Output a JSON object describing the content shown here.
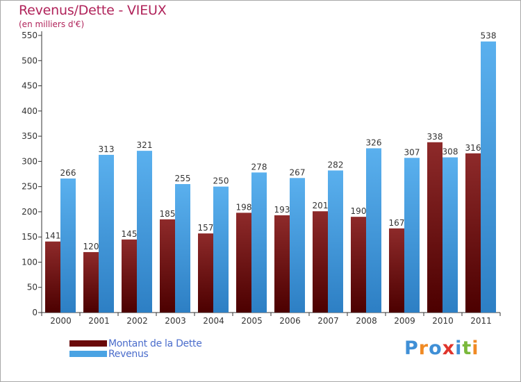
{
  "chart_data": {
    "type": "bar",
    "title": "Revenus/Dette - VIEUX",
    "ylabel": "(en milliers d'€)",
    "categories": [
      "2000",
      "2001",
      "2002",
      "2003",
      "2004",
      "2005",
      "2006",
      "2007",
      "2008",
      "2009",
      "2010",
      "2011"
    ],
    "series": [
      {
        "name": "Montant de la Dette",
        "color": "#6b0a0a",
        "values": [
          141,
          120,
          145,
          185,
          157,
          198,
          193,
          201,
          190,
          167,
          338,
          316
        ]
      },
      {
        "name": "Revenus",
        "color": "#4aa3e3",
        "values": [
          266,
          313,
          321,
          255,
          250,
          278,
          267,
          282,
          326,
          307,
          308,
          538
        ]
      }
    ],
    "ylim": [
      0,
      550
    ],
    "yticks": [
      0,
      50,
      100,
      150,
      200,
      250,
      300,
      350,
      400,
      450,
      500,
      550
    ],
    "grid": false,
    "legend": "bottom-left"
  },
  "logo": {
    "text": "Proxiti",
    "letters": [
      "P",
      "r",
      "o",
      "x",
      "i",
      "t",
      "i"
    ],
    "colors": [
      "#3f8fd6",
      "#f08a24",
      "#3f8fd6",
      "#e0342b",
      "#3f8fd6",
      "#7ab83b",
      "#f08a24"
    ]
  }
}
